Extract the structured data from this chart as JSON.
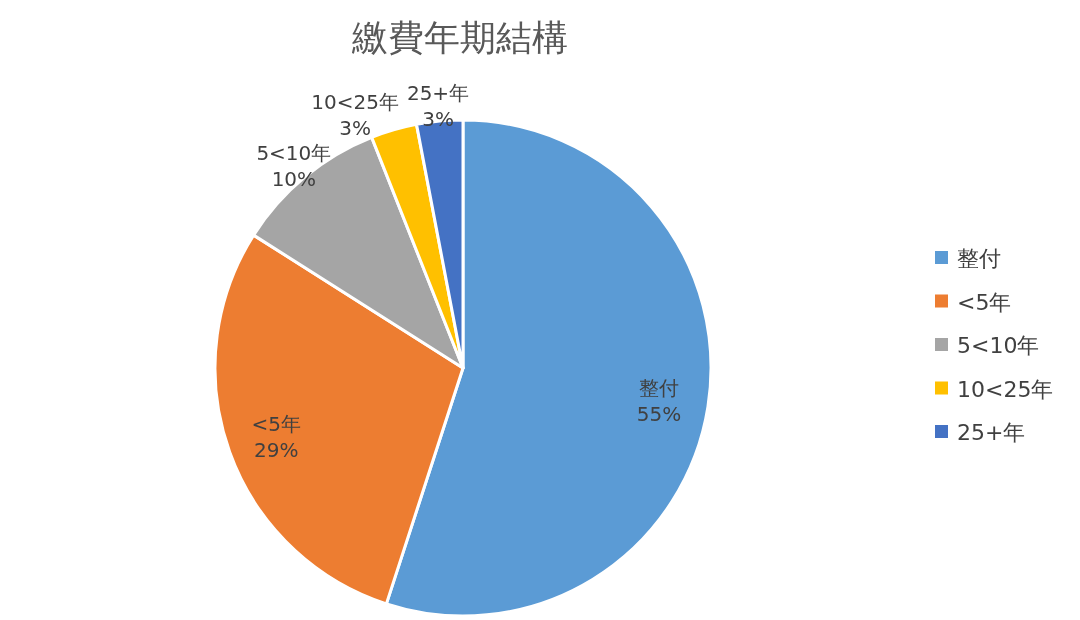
{
  "chart_data": {
    "type": "pie",
    "title": "繳費年期結構",
    "categories": [
      "整付",
      "<5年",
      "5<10年",
      "10<25年",
      "25+年"
    ],
    "values": [
      55,
      29,
      10,
      3,
      3
    ],
    "colors": [
      "#5b9bd5",
      "#ed7d31",
      "#a5a5a5",
      "#ffc000",
      "#4472c4"
    ],
    "value_labels": [
      "55%",
      "29%",
      "10%",
      "3%",
      "3%"
    ],
    "legend": "right"
  }
}
